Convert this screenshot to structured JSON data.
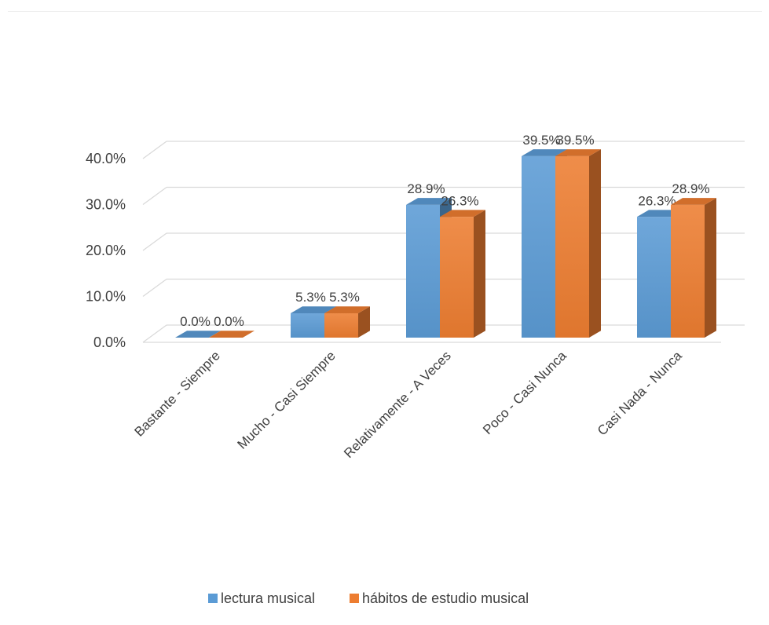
{
  "chart_data": {
    "type": "bar",
    "categories": [
      "Bastante  - Siempre",
      "Mucho  - Casi Siempre",
      "Relativamente  - A Veces",
      "Poco  - Casi Nunca",
      "Casi Nada  - Nunca"
    ],
    "series": [
      {
        "name": "lectura musical",
        "values": [
          0.0,
          5.3,
          28.9,
          39.5,
          26.3
        ],
        "labels": [
          "0.0%",
          "5.3%",
          "28.9%",
          "39.5%",
          "26.3%"
        ],
        "color": "#5B9BD5"
      },
      {
        "name": "hábitos de estudio musical",
        "values": [
          0.0,
          5.3,
          26.3,
          39.5,
          28.9
        ],
        "labels": [
          "0.0%",
          "5.3%",
          "26.3%",
          "39.5%",
          "28.9%"
        ],
        "color": "#ED7D31"
      }
    ],
    "ylim": [
      0,
      40
    ],
    "yticks": [
      "0.0%",
      "10.0%",
      "20.0%",
      "30.0%",
      "40.0%"
    ],
    "title": "",
    "xlabel": "",
    "ylabel": "",
    "grid": true,
    "legend": "bottom"
  }
}
